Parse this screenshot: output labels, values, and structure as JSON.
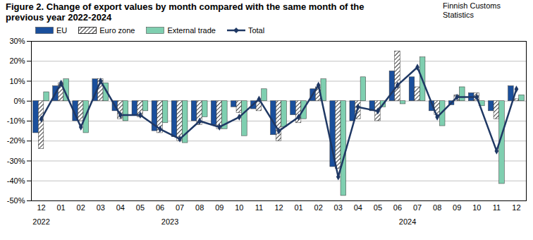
{
  "chart_data": {
    "type": "bar",
    "title": "Figure 2. Change of export values by month compared with the same month of the previous year 2022-2024",
    "source": "Finnish Customs Statistics",
    "categories": [
      "12",
      "01",
      "02",
      "03",
      "04",
      "05",
      "06",
      "07",
      "08",
      "09",
      "10",
      "11",
      "12",
      "01",
      "02",
      "03",
      "04",
      "05",
      "06",
      "07",
      "08",
      "09",
      "10",
      "11",
      "12"
    ],
    "years": [
      "2022",
      "2023",
      "2023",
      "2023",
      "2023",
      "2023",
      "2023",
      "2023",
      "2023",
      "2023",
      "2023",
      "2023",
      "2023",
      "2024",
      "2024",
      "2024",
      "2024",
      "2024",
      "2024",
      "2024",
      "2024",
      "2024",
      "2024",
      "2024",
      "2024"
    ],
    "series": [
      {
        "name": "EU",
        "type": "bar",
        "color": "#1a4f9c",
        "values": [
          -16,
          7.5,
          -10,
          11,
          -5,
          -7,
          -15,
          -18,
          -10,
          -12,
          -3,
          -4,
          -17,
          -7,
          6,
          -33,
          -10,
          -5,
          15,
          12,
          -5,
          -2,
          4,
          -5,
          7.5
        ]
      },
      {
        "name": "Euro zone",
        "type": "bar",
        "color": "#000000",
        "line_style": "hatched",
        "values": [
          -24,
          9,
          -10,
          11,
          -9,
          -8,
          -16,
          -20,
          -12,
          -14,
          -6,
          -5,
          -20,
          -11,
          7,
          -34,
          -9,
          -10,
          25,
          7,
          -7,
          3,
          4,
          -9,
          1
        ]
      },
      {
        "name": "External trade",
        "type": "bar",
        "color": "#7fcfb0",
        "values": [
          4.5,
          11,
          -16,
          9,
          -10,
          -5,
          -11,
          -21,
          -8,
          -14,
          -17.5,
          6,
          -13,
          -9,
          11,
          -47.5,
          12,
          -3,
          -1.5,
          22,
          -12.5,
          7,
          -2.5,
          -41.5,
          3
        ]
      },
      {
        "name": "Total",
        "type": "line",
        "color": "#1f3864",
        "marker": "diamond",
        "values": [
          -9,
          9,
          -13,
          10,
          -7,
          -7,
          -14,
          -19,
          -10,
          -13,
          -8,
          1,
          -15,
          -8,
          8,
          -38,
          -3,
          -5,
          8,
          17,
          -8,
          2,
          2,
          -25,
          6
        ]
      }
    ],
    "ylim": [
      -50,
      30
    ],
    "yticks": [
      {
        "value": -50,
        "label": "-50%"
      },
      {
        "value": -40,
        "label": "-40%"
      },
      {
        "value": -30,
        "label": "-30%"
      },
      {
        "value": -20,
        "label": "-20%"
      },
      {
        "value": -10,
        "label": "-10%"
      },
      {
        "value": 0,
        "label": "0%"
      },
      {
        "value": 10,
        "label": "10%"
      },
      {
        "value": 20,
        "label": "20%"
      },
      {
        "value": 30,
        "label": "30%"
      }
    ],
    "grid": true,
    "legend": "top"
  }
}
